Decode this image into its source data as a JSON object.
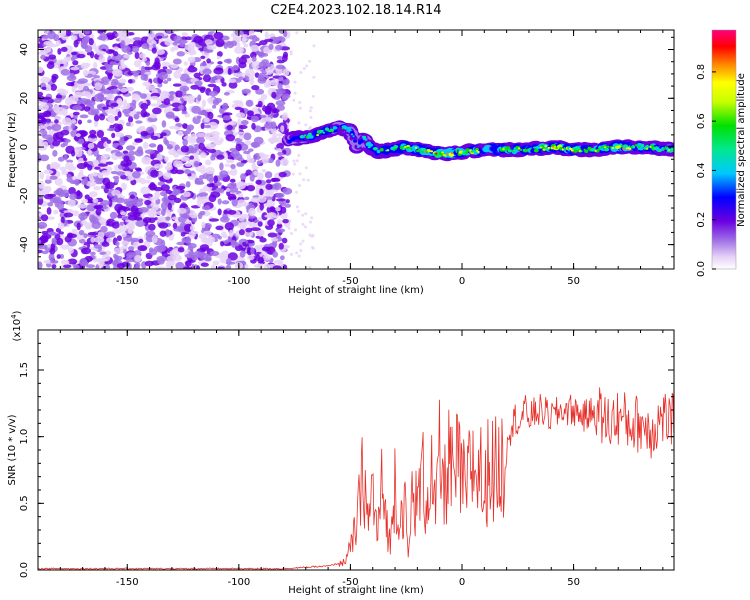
{
  "title": "C2E4.2023.102.18.14.R14",
  "chart_data": [
    {
      "type": "heatmap",
      "xlabel": "Height of straight line (km)",
      "ylabel": "Frequency (Hz)",
      "xlim": [
        -190,
        95
      ],
      "ylim": [
        -50,
        48
      ],
      "xticks": [
        -150,
        -100,
        -50,
        0,
        50
      ],
      "yticks": [
        -40,
        -20,
        0,
        20,
        40
      ],
      "colorbar": {
        "label": "Normalized spectral amplitude",
        "range": [
          0,
          0.97
        ],
        "ticks": [
          "0.0",
          "0.2",
          "0.4",
          "0.6",
          "0.8"
        ],
        "tick_values": [
          0.0,
          0.2,
          0.4,
          0.6,
          0.8
        ],
        "colormap": [
          "#ffffff",
          "#d8b8f0",
          "#8a2be2",
          "#0000ff",
          "#00c8ff",
          "#00e000",
          "#ffff00",
          "#ff8000",
          "#ff0000",
          "#ff0080"
        ]
      },
      "noise_region": {
        "x_range": [
          -190,
          -78
        ],
        "amplitude": 0.25
      },
      "signal_track": {
        "x": [
          -78,
          -72,
          -66,
          -60,
          -55,
          -50,
          -47,
          -44,
          -42,
          -38,
          -32,
          -26,
          -20,
          -14,
          -8,
          0,
          10,
          20,
          30,
          40,
          50,
          60,
          70,
          80,
          95
        ],
        "y": [
          3,
          4,
          5,
          7,
          8,
          7,
          0,
          4,
          1,
          -2,
          -1,
          0,
          -1,
          -2,
          -3,
          -2,
          -1,
          -1,
          -1,
          0,
          -1,
          -1,
          0,
          0,
          -1
        ],
        "amplitude": [
          0.35,
          0.45,
          0.55,
          0.6,
          0.5,
          0.45,
          0.3,
          0.4,
          0.5,
          0.55,
          0.6,
          0.7,
          0.7,
          0.75,
          0.8,
          0.7,
          0.6,
          0.65,
          0.6,
          0.7,
          0.65,
          0.6,
          0.75,
          0.6,
          0.55
        ]
      }
    },
    {
      "type": "line",
      "xlabel": "Height of straight line (km)",
      "ylabel": "SNR (10 * v/v)",
      "yscale_label": "(x10",
      "yscale_exp": "4",
      "xlim": [
        -190,
        95
      ],
      "ylim": [
        0,
        1.8
      ],
      "xticks": [
        -150,
        -100,
        -50,
        0,
        50
      ],
      "yticks": [
        "0.0",
        "0.5",
        "1.0",
        "1.5"
      ],
      "ytick_values": [
        0.0,
        0.5,
        1.0,
        1.5
      ],
      "color": "#e8302a",
      "series": [
        {
          "x": [
            -190,
            -150,
            -100,
            -80,
            -70,
            -60,
            -55,
            -52,
            -50,
            -48,
            -46,
            -44,
            -42,
            -40,
            -38,
            -36,
            -34,
            -32,
            -30,
            -28,
            -26,
            -24,
            -22,
            -20,
            -18,
            -16,
            -14,
            -12,
            -10,
            -8,
            -6,
            -4,
            -2,
            0,
            2,
            4,
            6,
            8,
            10,
            12,
            14,
            16,
            18,
            20,
            22,
            24,
            26,
            28,
            30,
            35,
            40,
            45,
            50,
            55,
            60,
            65,
            70,
            75,
            80,
            85,
            90,
            95
          ],
          "y": [
            0.01,
            0.01,
            0.01,
            0.01,
            0.02,
            0.03,
            0.05,
            0.1,
            0.2,
            0.35,
            0.6,
            0.95,
            0.4,
            0.8,
            0.3,
            0.75,
            0.5,
            0.2,
            0.9,
            0.4,
            0.7,
            0.1,
            0.8,
            0.55,
            0.95,
            0.6,
            1.0,
            0.5,
            1.05,
            0.7,
            1.1,
            0.8,
            1.0,
            0.85,
            0.7,
            1.05,
            0.9,
            1.0,
            0.6,
            1.1,
            0.9,
            0.95,
            1.0,
            1.1,
            1.05,
            1.15,
            1.1,
            1.2,
            1.15,
            1.2,
            1.15,
            1.2,
            1.2,
            1.15,
            1.2,
            1.1,
            1.15,
            1.1,
            1.1,
            1.05,
            1.15,
            1.1
          ]
        }
      ]
    }
  ]
}
